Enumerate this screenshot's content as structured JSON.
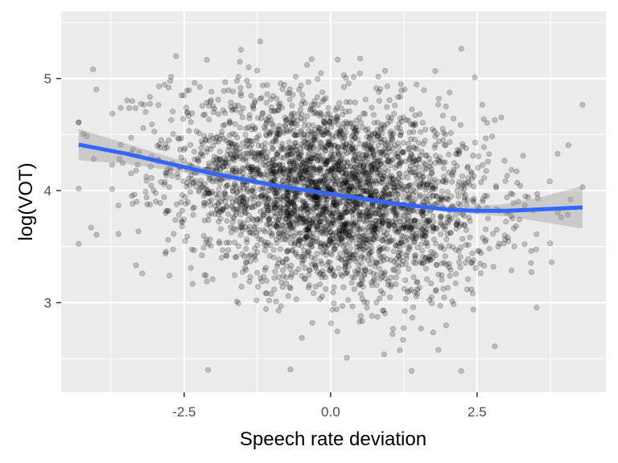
{
  "chart_data": {
    "type": "scatter",
    "title": "",
    "xlabel": "Speech rate deviation",
    "ylabel": "log(VOT)",
    "xlim": [
      -4.6,
      4.7
    ],
    "ylim": [
      2.2,
      5.6
    ],
    "x_ticks": [
      -2.5,
      0.0,
      2.5
    ],
    "x_tick_labels": [
      "-2.5",
      "0.0",
      "2.5"
    ],
    "y_ticks": [
      3,
      4,
      5
    ],
    "y_tick_labels": [
      "3",
      "4",
      "5"
    ],
    "grid": true,
    "legend": "none",
    "point_color": "#000000",
    "point_alpha": 0.2,
    "n_points": 3500,
    "point_cloud": {
      "x_mean": 0.0,
      "x_sd": 1.35,
      "y_mean": 3.98,
      "y_sd": 0.42,
      "x_range": [
        -4.3,
        4.3
      ],
      "y_range": [
        2.33,
        5.48
      ]
    },
    "smooth": {
      "color": "#3366FF",
      "band_color": "#999999",
      "x": [
        -4.3,
        -3.5,
        -3.0,
        -2.5,
        -2.0,
        -1.5,
        -1.0,
        -0.5,
        0.0,
        0.5,
        1.0,
        1.5,
        2.0,
        2.5,
        3.0,
        3.5,
        4.3
      ],
      "y": [
        4.41,
        4.33,
        4.27,
        4.21,
        4.15,
        4.1,
        4.05,
        4.01,
        3.97,
        3.93,
        3.89,
        3.86,
        3.83,
        3.82,
        3.82,
        3.83,
        3.85
      ],
      "lower": [
        4.27,
        4.24,
        4.2,
        4.16,
        4.12,
        4.07,
        4.03,
        3.99,
        3.95,
        3.91,
        3.87,
        3.84,
        3.81,
        3.79,
        3.77,
        3.73,
        3.66
      ],
      "upper": [
        4.55,
        4.42,
        4.34,
        4.26,
        4.18,
        4.13,
        4.07,
        4.03,
        3.99,
        3.95,
        3.91,
        3.88,
        3.86,
        3.86,
        3.88,
        3.93,
        4.04
      ]
    }
  }
}
